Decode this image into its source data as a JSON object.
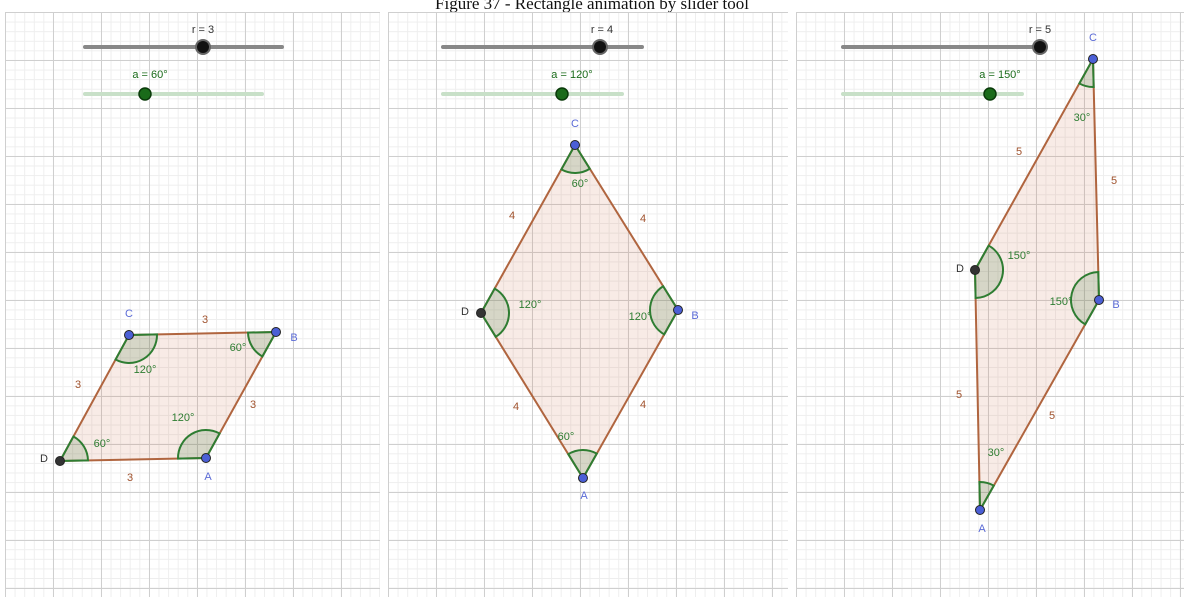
{
  "title": "Figure 37 - Rectangle animation by slider tool",
  "panels": [
    {
      "sliders": [
        "r = 3",
        "a = 60°"
      ],
      "vertices": [
        "A",
        "B",
        "C",
        "D"
      ],
      "sides": [
        "3",
        "3",
        "3",
        "3"
      ],
      "angles": [
        "120°",
        "60°",
        "120°",
        "60°"
      ]
    },
    {
      "sliders": [
        "r = 4",
        "a = 120°"
      ],
      "vertices": [
        "A",
        "B",
        "C",
        "D"
      ],
      "sides": [
        "4",
        "4",
        "4",
        "4"
      ],
      "angles": [
        "60°",
        "120°",
        "60°",
        "120°"
      ]
    },
    {
      "sliders": [
        "r = 5",
        "a = 150°"
      ],
      "vertices": [
        "A",
        "B",
        "C",
        "D"
      ],
      "sides": [
        "5",
        "5",
        "5",
        "5"
      ],
      "angles": [
        "30°",
        "150°",
        "30°",
        "150°"
      ]
    }
  ]
}
